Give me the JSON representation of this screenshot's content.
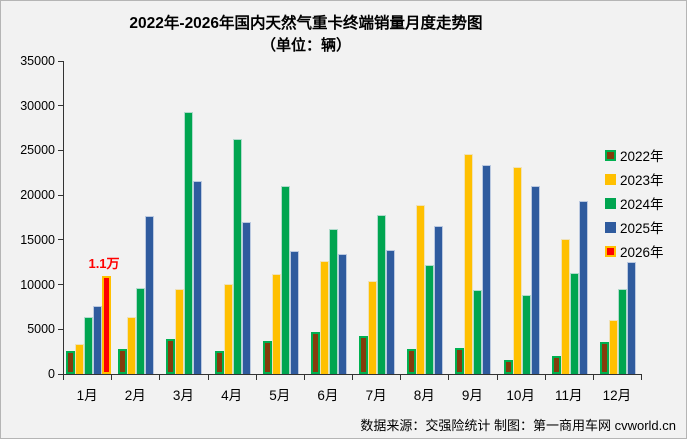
{
  "chart_data": {
    "type": "bar",
    "title": "2022年-2026年国内天然气重卡终端销量月度走势图",
    "subtitle": "（单位：辆）",
    "categories": [
      "1月",
      "2月",
      "3月",
      "4月",
      "5月",
      "6月",
      "7月",
      "8月",
      "9月",
      "10月",
      "11月",
      "12月"
    ],
    "series": [
      {
        "name": "2022年",
        "color": "#843C0C",
        "border_color": "#00B050",
        "values": [
          2600,
          2800,
          3900,
          2600,
          3700,
          4700,
          4200,
          2800,
          2900,
          1600,
          2000,
          3600
        ]
      },
      {
        "name": "2023年",
        "color": "#FFC000",
        "border_color": null,
        "values": [
          3400,
          6400,
          9500,
          10100,
          11200,
          12600,
          10400,
          18900,
          24600,
          23200,
          15100,
          6000
        ]
      },
      {
        "name": "2024年",
        "color": "#00A550",
        "border_color": null,
        "values": [
          6400,
          9600,
          29300,
          26300,
          21000,
          16200,
          17800,
          12200,
          9400,
          8800,
          11300,
          9500
        ]
      },
      {
        "name": "2025年",
        "color": "#2F5B9E",
        "border_color": null,
        "values": [
          7600,
          17700,
          21600,
          17000,
          13800,
          13400,
          13900,
          16600,
          23400,
          21000,
          19300,
          12500
        ]
      },
      {
        "name": "2026年",
        "color": "#FE0000",
        "border_color": "#FFC000",
        "values": [
          11000,
          null,
          null,
          null,
          null,
          null,
          null,
          null,
          null,
          null,
          null,
          null
        ]
      }
    ],
    "ylim": [
      0,
      35000
    ],
    "ytick_step": 5000,
    "grid": false,
    "legend_position": "right",
    "annotation": {
      "text": "1.1万",
      "series": "2026年",
      "month_index": 0,
      "color": "#FF0000"
    },
    "footer": "数据来源：交强险统计  制图：第一商用车网 cvworld.cn"
  }
}
